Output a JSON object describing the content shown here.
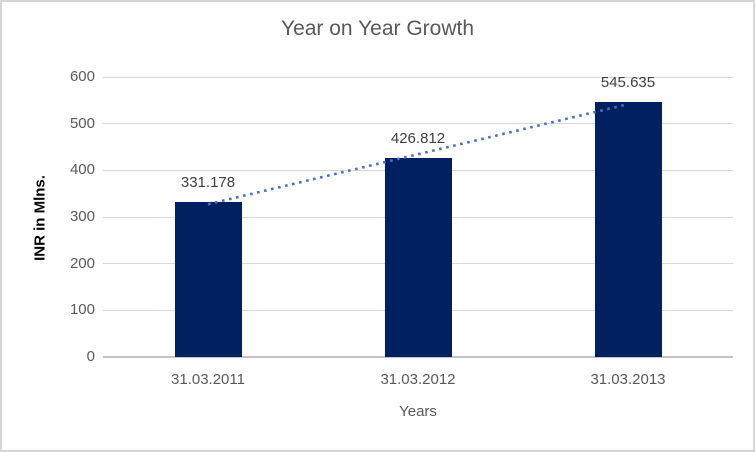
{
  "chart_data": {
    "type": "bar",
    "title": "Year on Year Growth",
    "xlabel": "Years",
    "ylabel": "INR in Mlns.",
    "categories": [
      "31.03.2011",
      "31.03.2012",
      "31.03.2013"
    ],
    "values": [
      331.178,
      426.812,
      545.635
    ],
    "data_labels": [
      "331.178",
      "426.812",
      "545.635"
    ],
    "ylim": [
      0,
      600
    ],
    "yticks": [
      0,
      100,
      200,
      300,
      400,
      500,
      600
    ],
    "grid": true,
    "legend": false,
    "trendline": {
      "type": "linear",
      "style": "dotted",
      "spans": "first-bar-center-to-last-bar-center"
    }
  },
  "colors": {
    "bar_fill": "#002060",
    "trendline": "#4472C4",
    "title_text": "#595959",
    "axis_tick_text": "#595959",
    "x_axis_title_text": "#595959",
    "y_axis_title_text": "#000000",
    "data_label_text": "#404040",
    "gridline": "#d9d9d9",
    "axis_line": "#c3c3c3",
    "frame_border": "#d5d5d5",
    "background": "#ffffff"
  }
}
